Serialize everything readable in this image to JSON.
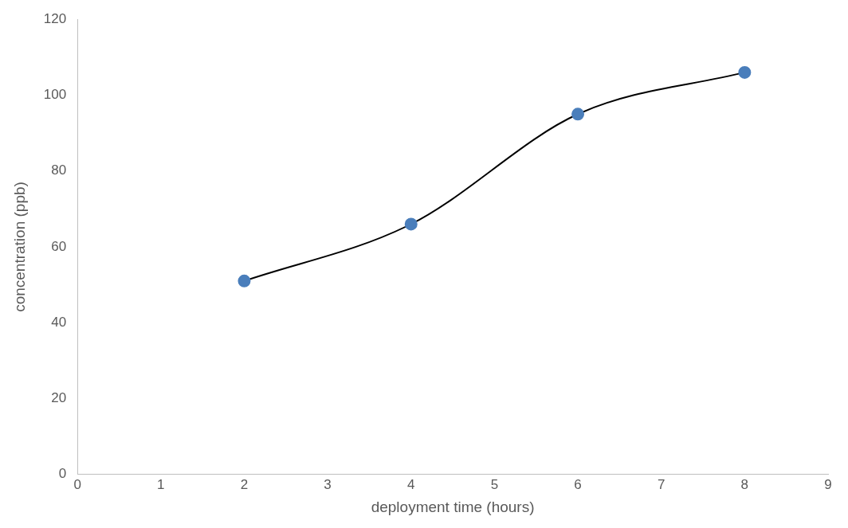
{
  "chart_data": {
    "type": "line",
    "xlabel": "deployment time (hours)",
    "ylabel": "concentration (ppb)",
    "x": [
      2,
      4,
      6,
      8
    ],
    "series": [
      {
        "color": "#000000",
        "colors": [
          "#4a7ebb",
          "#4a7ebb",
          "#4a7ebb",
          "#4a7ebb"
        ],
        "values": [
          51,
          66,
          95,
          106
        ]
      }
    ],
    "xlim": [
      0,
      9
    ],
    "xticks": [
      0,
      1,
      2,
      3,
      4,
      5,
      6,
      7,
      8,
      9
    ],
    "ylim": [
      0,
      120
    ],
    "yticks": [
      0,
      20,
      40,
      60,
      80,
      100,
      120
    ],
    "grid": false,
    "legend": false,
    "marker": "circle",
    "line_style": "solid"
  }
}
